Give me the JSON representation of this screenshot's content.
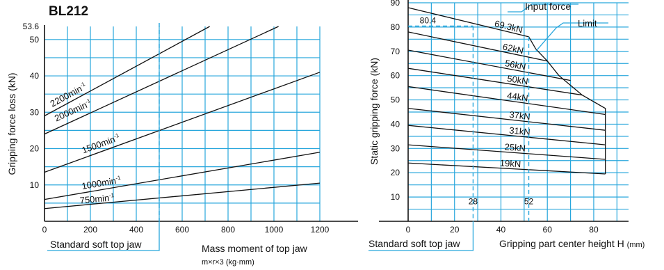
{
  "title": "BL212",
  "chart_data": [
    {
      "type": "line",
      "xlabel": "Mass moment of top jaw",
      "xlabel_sub": "m×r×3 (kg·mm)",
      "ylabel": "Gripping force loss (kN)",
      "xlim": [
        0,
        1200
      ],
      "ylim": [
        0,
        53.6
      ],
      "x_ticks": [
        0,
        200,
        400,
        600,
        800,
        1000,
        1200
      ],
      "y_ticks": [
        10,
        20,
        30,
        40,
        50
      ],
      "y_max_label": "53.6",
      "grid": true,
      "series": [
        {
          "name": "2200min-1",
          "label_base": "2200min",
          "label_sup": "-1",
          "x": [
            0,
            720
          ],
          "y": [
            29,
            53.6
          ]
        },
        {
          "name": "2000min-1",
          "label_base": "2000min",
          "label_sup": "-1",
          "x": [
            0,
            1020
          ],
          "y": [
            24,
            53.6
          ]
        },
        {
          "name": "1500min-1",
          "label_base": "1500min",
          "label_sup": "-1",
          "x": [
            0,
            1200
          ],
          "y": [
            13.5,
            41
          ]
        },
        {
          "name": "1000min-1",
          "label_base": "1000min",
          "label_sup": "-1",
          "x": [
            0,
            1200
          ],
          "y": [
            6,
            19
          ]
        },
        {
          "name": "750min-1",
          "label_base": "750min",
          "label_sup": "-1",
          "x": [
            0,
            1200
          ],
          "y": [
            3.5,
            10.5
          ]
        }
      ],
      "reference_line": {
        "x": 500,
        "label": "Standard soft top jaw"
      }
    },
    {
      "type": "line",
      "xlabel": "Gripping part center height H",
      "xlabel_unit": "(mm)",
      "ylabel": "Static gripping force (kN)",
      "xlim": [
        0,
        95
      ],
      "ylim": [
        0,
        90
      ],
      "x_ticks": [
        0,
        20,
        40,
        60,
        80
      ],
      "y_ticks": [
        10,
        20,
        30,
        40,
        50,
        60,
        70,
        80,
        90
      ],
      "grid": true,
      "series": [
        {
          "name": "69.3kN",
          "x": [
            0,
            52
          ],
          "y": [
            88,
            76
          ]
        },
        {
          "name": "62kN",
          "x": [
            0,
            60
          ],
          "y": [
            78,
            66
          ]
        },
        {
          "name": "56kN",
          "x": [
            0,
            70
          ],
          "y": [
            70.5,
            58
          ]
        },
        {
          "name": "50kN",
          "x": [
            0,
            75
          ],
          "y": [
            63,
            52
          ]
        },
        {
          "name": "44kN",
          "x": [
            0,
            85
          ],
          "y": [
            55.5,
            44
          ]
        },
        {
          "name": "37kN",
          "x": [
            0,
            85
          ],
          "y": [
            46.5,
            37.5
          ]
        },
        {
          "name": "31kN",
          "x": [
            0,
            85
          ],
          "y": [
            39.5,
            31.5
          ]
        },
        {
          "name": "25kN",
          "x": [
            0,
            85
          ],
          "y": [
            31.5,
            25.5
          ]
        },
        {
          "name": "19kN",
          "x": [
            0,
            85
          ],
          "y": [
            24,
            19.5
          ]
        }
      ],
      "limit_curve": {
        "name": "Limit",
        "x": [
          52,
          55,
          60,
          65,
          70,
          75,
          85,
          85
        ],
        "y": [
          76,
          71,
          66,
          60,
          56,
          52,
          46.5,
          19.5
        ]
      },
      "annotations": {
        "input_force": "Input force",
        "limit": "Limit",
        "value_80_4": "80.4",
        "h28": "28",
        "h52": "52"
      },
      "reference_line": {
        "x": 28,
        "y": 80.4,
        "label": "Standard soft top jaw"
      },
      "marker_line": {
        "x": 52
      }
    }
  ]
}
